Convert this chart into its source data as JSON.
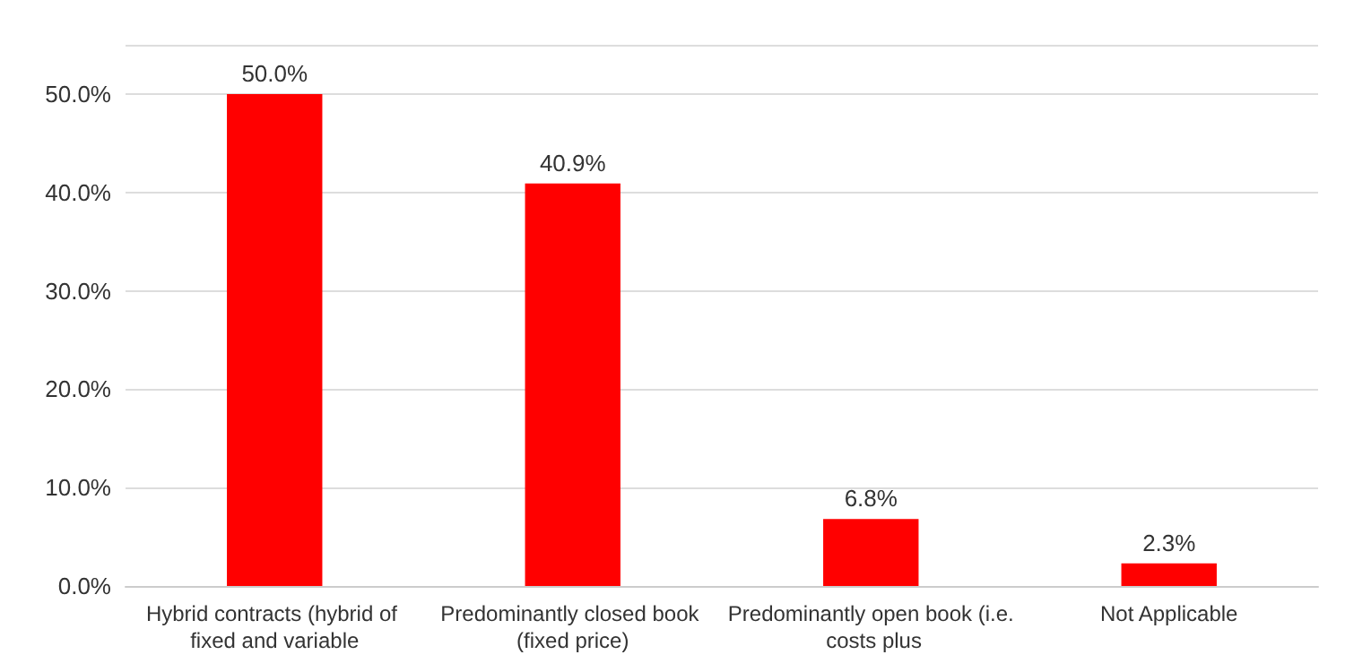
{
  "chart_data": {
    "type": "bar",
    "categories": [
      "Hybrid contracts (hybrid of fixed and variable",
      "Predominantly closed book (fixed price)",
      "Predominantly open book (i.e. costs plus",
      "Not Applicable"
    ],
    "values": [
      50.0,
      40.9,
      6.8,
      2.3
    ],
    "color": "#ff0000",
    "value_labels": [
      "50.0%",
      "40.9%",
      "6.8%",
      "2.3%"
    ],
    "ylim": [
      0,
      55
    ],
    "yticks": [
      {
        "value": 0,
        "label": "0.0%"
      },
      {
        "value": 10,
        "label": "10.0%"
      },
      {
        "value": 20,
        "label": "20.0%"
      },
      {
        "value": 30,
        "label": "30.0%"
      },
      {
        "value": 40,
        "label": "40.0%"
      },
      {
        "value": 50,
        "label": "50.0%"
      },
      {
        "value": 55,
        "label": null
      }
    ],
    "grid": "y"
  }
}
